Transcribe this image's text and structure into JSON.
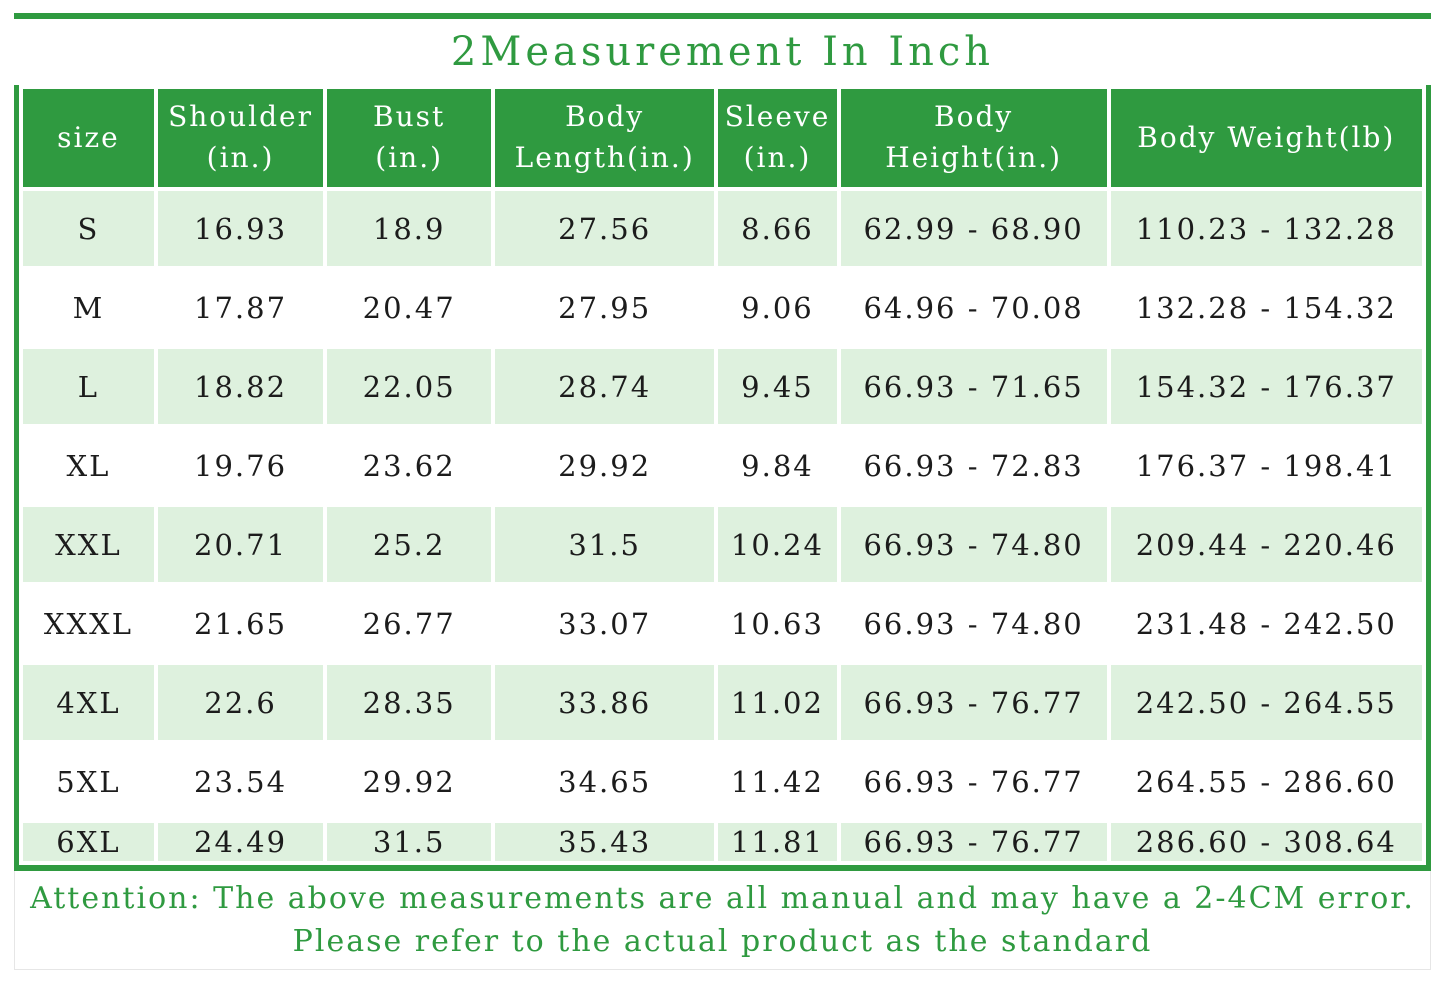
{
  "title": "2Measurement In Inch",
  "colors": {
    "green": "#2f9a40",
    "row_light_green": "#def1de",
    "data_text": "#1c1c1c"
  },
  "attention": {
    "line1": "Attention: The above measurements are all manual and may have a 2-4CM error.",
    "line2": "Please refer to the actual product as the standard"
  },
  "table": {
    "columns": [
      {
        "label_lines": [
          "size"
        ]
      },
      {
        "label_lines": [
          "Shoulder",
          "(in.)"
        ]
      },
      {
        "label_lines": [
          "Bust",
          "(in.)"
        ]
      },
      {
        "label_lines": [
          "Body",
          "Length(in.)"
        ]
      },
      {
        "label_lines": [
          "Sleeve",
          "(in.)"
        ]
      },
      {
        "label_lines": [
          "Body",
          "Height(in.)"
        ]
      },
      {
        "label_lines": [
          "Body Weight(lb)"
        ]
      }
    ],
    "rows": [
      [
        "S",
        "16.93",
        "18.9",
        "27.56",
        "8.66",
        "62.99 - 68.90",
        "110.23 - 132.28"
      ],
      [
        "M",
        "17.87",
        "20.47",
        "27.95",
        "9.06",
        "64.96 - 70.08",
        "132.28 - 154.32"
      ],
      [
        "L",
        "18.82",
        "22.05",
        "28.74",
        "9.45",
        "66.93 - 71.65",
        "154.32 - 176.37"
      ],
      [
        "XL",
        "19.76",
        "23.62",
        "29.92",
        "9.84",
        "66.93 - 72.83",
        "176.37 - 198.41"
      ],
      [
        "XXL",
        "20.71",
        "25.2",
        "31.5",
        "10.24",
        "66.93 - 74.80",
        "209.44 - 220.46"
      ],
      [
        "XXXL",
        "21.65",
        "26.77",
        "33.07",
        "10.63",
        "66.93 - 74.80",
        "231.48 - 242.50"
      ],
      [
        "4XL",
        "22.6",
        "28.35",
        "33.86",
        "11.02",
        "66.93 - 76.77",
        "242.50 - 264.55"
      ],
      [
        "5XL",
        "23.54",
        "29.92",
        "34.65",
        "11.42",
        "66.93 - 76.77",
        "264.55 - 286.60"
      ],
      [
        "6XL",
        "24.49",
        "31.5",
        "35.43",
        "11.81",
        "66.93 - 76.77",
        "286.60 - 308.64"
      ]
    ]
  },
  "chart_data": {
    "type": "table",
    "title": "2Measurement In Inch",
    "columns": [
      "size",
      "Shoulder (in.)",
      "Bust (in.)",
      "Body Length(in.)",
      "Sleeve (in.)",
      "Body Height(in.)",
      "Body Weight(lb)"
    ],
    "rows": [
      [
        "S",
        16.93,
        18.9,
        27.56,
        8.66,
        "62.99 - 68.90",
        "110.23 - 132.28"
      ],
      [
        "M",
        17.87,
        20.47,
        27.95,
        9.06,
        "64.96 - 70.08",
        "132.28 - 154.32"
      ],
      [
        "L",
        18.82,
        22.05,
        28.74,
        9.45,
        "66.93 - 71.65",
        "154.32 - 176.37"
      ],
      [
        "XL",
        19.76,
        23.62,
        29.92,
        9.84,
        "66.93 - 72.83",
        "176.37 - 198.41"
      ],
      [
        "XXL",
        20.71,
        25.2,
        31.5,
        10.24,
        "66.93 - 74.80",
        "209.44 - 220.46"
      ],
      [
        "XXXL",
        21.65,
        26.77,
        33.07,
        10.63,
        "66.93 - 74.80",
        "231.48 - 242.50"
      ],
      [
        "4XL",
        22.6,
        28.35,
        33.86,
        11.02,
        "66.93 - 76.77",
        "242.50 - 264.55"
      ],
      [
        "5XL",
        23.54,
        29.92,
        34.65,
        11.42,
        "66.93 - 76.77",
        "264.55 - 286.60"
      ],
      [
        "6XL",
        24.49,
        31.5,
        35.43,
        11.81,
        "66.93 - 76.77",
        "286.60 - 308.64"
      ]
    ],
    "notes": [
      "Attention: The above measurements are all manual and may have a 2-4CM error.",
      "Please refer to the actual product as the standard"
    ]
  }
}
